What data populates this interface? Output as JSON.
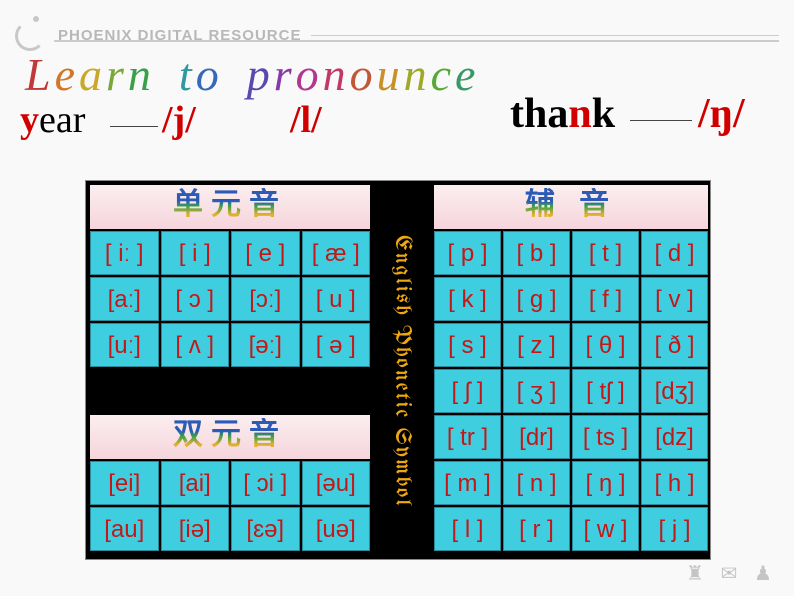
{
  "brand": "PHOENIX DIGITAL RESOURCE",
  "title": {
    "word1": "Learn",
    "word2": "to",
    "word3": "pronounce",
    "char_colors": {
      "Learn": [
        "#c03838",
        "#d07828",
        "#c8a828",
        "#7aa838",
        "#38a048"
      ],
      "to": [
        "#3098a0",
        "#3868b8"
      ],
      "pronounce": [
        "#5848b0",
        "#8838a8",
        "#b03890",
        "#c03868",
        "#c05838",
        "#c89028",
        "#a0a828",
        "#58a838",
        "#389868"
      ]
    }
  },
  "examples": {
    "year_highlight": "y",
    "year_rest": "ear",
    "j_symbol": "/j/",
    "l_symbol": "/l/",
    "thank_pre": "tha",
    "thank_hl": "n",
    "thank_post": "k",
    "ng_symbol": "/ŋ/"
  },
  "chart": {
    "mono_head": "单元音",
    "di_head": "双元音",
    "cons_head": "辅 音",
    "vertical_label": "English Phonetic Symbol",
    "mono_cells": [
      "[ iː ]",
      "[ i ]",
      "[ e ]",
      "[ æ ]",
      "[aː]",
      "[ ɔ ]",
      "[ɔː]",
      "[ u ]",
      "[uː]",
      "[ ʌ ]",
      "[əː]",
      "[ ə ]"
    ],
    "di_cells": [
      "[ei]",
      "[ai]",
      "[ ɔi ]",
      "[əu]",
      "[au]",
      "[iə]",
      "[ɛə]",
      "[uə]"
    ],
    "cons_cells": [
      "[ p ]",
      "[ b ]",
      "[ t ]",
      "[ d ]",
      "[ k ]",
      "[ g ]",
      "[ f ]",
      "[ v ]",
      "[ s ]",
      "[ z ]",
      "[ θ ]",
      "[ ð ]",
      "[ ʃ ]",
      "[ ʒ ]",
      "[ tʃ ]",
      "[dʒ]",
      "[ tr ]",
      "[dr]",
      "[ ts ]",
      "[dz]",
      "[ m ]",
      "[ n ]",
      "[ ŋ ]",
      "[ h ]",
      "[ l ]",
      "[ r ]",
      "[ w ]",
      "[ j ]"
    ],
    "cell_bg": "#3fcde0",
    "cell_text": "#c41818",
    "head_bg_top": "#fbeef0",
    "head_bg_bottom": "#f5d5db",
    "vertical_color": "#f0a810"
  }
}
